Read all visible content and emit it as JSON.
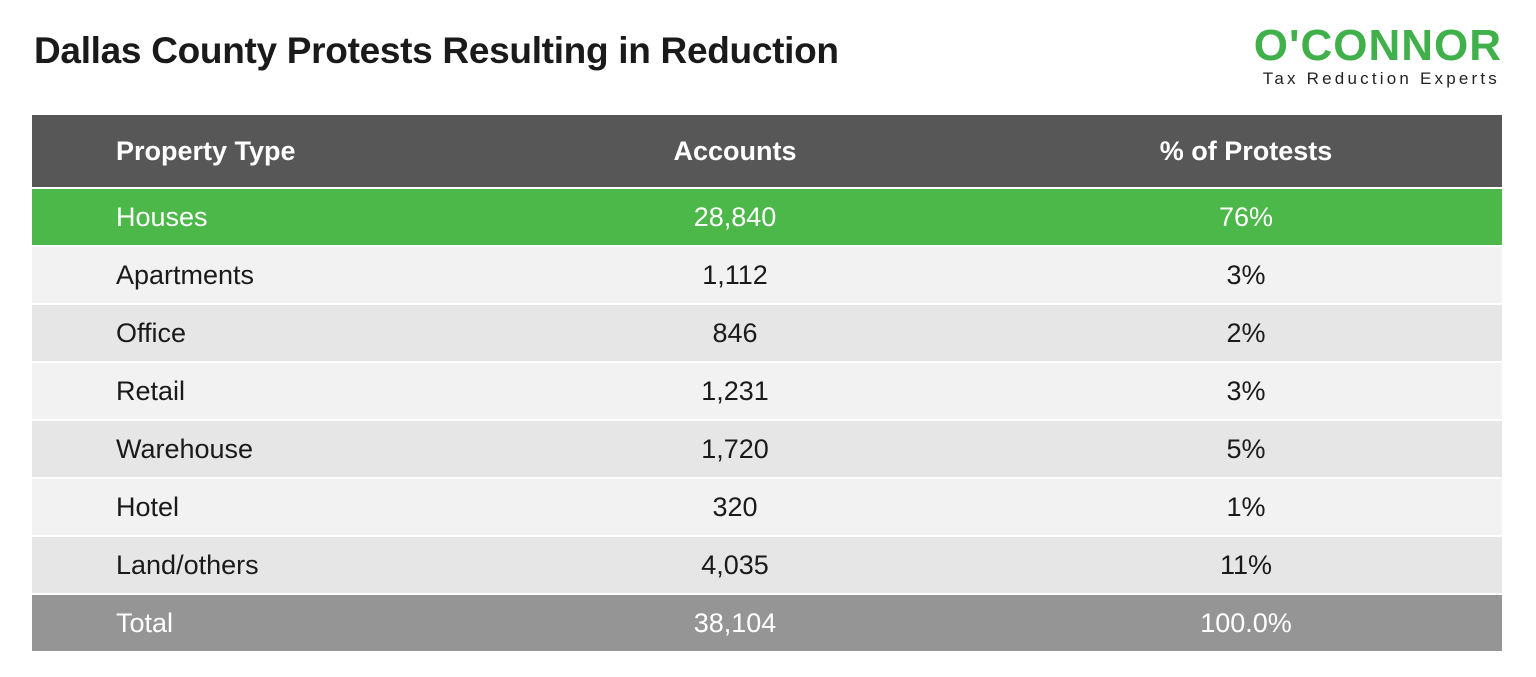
{
  "title": "Dallas County Protests Resulting in Reduction",
  "logo": {
    "wordmark": "O'CONNOR",
    "tagline": "Tax Reduction Experts",
    "brand_color": "#3fb04a"
  },
  "colors": {
    "header_bg": "#575757",
    "highlight_bg": "#4db84a",
    "total_bg": "#959595",
    "row_light": "#f2f2f2",
    "row_dark": "#e6e6e6"
  },
  "chart_data": {
    "type": "table",
    "title": "Dallas County Protests Resulting in Reduction",
    "columns": [
      "Property Type",
      "Accounts",
      "% of Protests"
    ],
    "rows": [
      [
        "Houses",
        "28,840",
        "76%"
      ],
      [
        "Apartments",
        "1,112",
        "3%"
      ],
      [
        "Office",
        "846",
        "2%"
      ],
      [
        "Retail",
        "1,231",
        "3%"
      ],
      [
        "Warehouse",
        "1,720",
        "5%"
      ],
      [
        "Hotel",
        "320",
        "1%"
      ],
      [
        "Land/others",
        "4,035",
        "11%"
      ],
      [
        "Total",
        "38,104",
        "100.0%"
      ]
    ],
    "highlight_row": 0,
    "total_row": 7
  }
}
